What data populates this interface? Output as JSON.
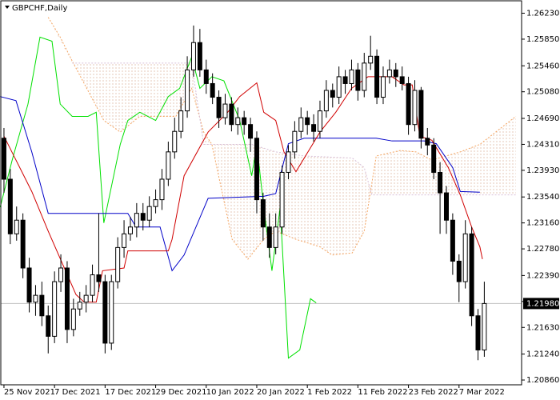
{
  "chart_data": {
    "type": "candlestick",
    "title": "GBPCHF,Daily",
    "xlim": [
      -0.5,
      81.9
    ],
    "ylim": [
      1.2079,
      1.264
    ],
    "xticks": [
      {
        "value": 0,
        "label": "25 Nov 2021"
      },
      {
        "value": 8,
        "label": "7 Dec 2021"
      },
      {
        "value": 16,
        "label": "17 Dec 2021"
      },
      {
        "value": 24,
        "label": "29 Dec 2021"
      },
      {
        "value": 32,
        "label": "10 Jan 2022"
      },
      {
        "value": 40,
        "label": "20 Jan 2022"
      },
      {
        "value": 48,
        "label": "1 Feb 2022"
      },
      {
        "value": 56,
        "label": "11 Feb 2022"
      },
      {
        "value": 64,
        "label": "23 Feb 2022"
      },
      {
        "value": 72,
        "label": "7 Mar 2022"
      }
    ],
    "yticks": [
      {
        "value": 1.2623,
        "label": "1.26230"
      },
      {
        "value": 1.2585,
        "label": "1.25850"
      },
      {
        "value": 1.2546,
        "label": "1.25460"
      },
      {
        "value": 1.2508,
        "label": "1.25080"
      },
      {
        "value": 1.2469,
        "label": "1.24690"
      },
      {
        "value": 1.2431,
        "label": "1.24310"
      },
      {
        "value": 1.2393,
        "label": "1.23930"
      },
      {
        "value": 1.2354,
        "label": "1.23540"
      },
      {
        "value": 1.2316,
        "label": "1.23160"
      },
      {
        "value": 1.2278,
        "label": "1.22780"
      },
      {
        "value": 1.2239,
        "label": "1.22390"
      },
      {
        "value": 1.2201,
        "label": "1.22010"
      },
      {
        "value": 1.2163,
        "label": "1.21630"
      },
      {
        "value": 1.2124,
        "label": "1.21240"
      },
      {
        "value": 1.2086,
        "label": "1.20860"
      }
    ],
    "current_price": {
      "value": 1.2198,
      "label": "1.21980"
    },
    "candles": {
      "x": [
        0,
        1,
        2,
        3,
        4,
        5,
        6,
        7,
        8,
        9,
        10,
        11,
        12,
        13,
        14,
        15,
        16,
        17,
        18,
        19,
        20,
        21,
        22,
        23,
        24,
        25,
        26,
        27,
        28,
        29,
        30,
        31,
        32,
        33,
        34,
        35,
        36,
        37,
        38,
        39,
        40,
        41,
        42,
        43,
        44,
        45,
        46,
        47,
        48,
        49,
        50,
        51,
        52,
        53,
        54,
        55,
        56,
        57,
        58,
        59,
        60,
        61,
        62,
        63,
        64,
        65,
        66,
        67,
        68,
        69,
        70,
        71,
        72,
        73,
        74,
        75,
        76
      ],
      "open": [
        1.244,
        1.238,
        1.23,
        1.232,
        1.225,
        1.22,
        1.221,
        1.218,
        1.215,
        1.223,
        1.225,
        1.216,
        1.219,
        1.22,
        1.221,
        1.224,
        1.223,
        1.214,
        1.223,
        1.228,
        1.23,
        1.231,
        1.233,
        1.232,
        1.234,
        1.235,
        1.238,
        1.242,
        1.245,
        1.248,
        1.254,
        1.258,
        1.254,
        1.252,
        1.25,
        1.247,
        1.249,
        1.246,
        1.247,
        1.246,
        1.244,
        1.235,
        1.231,
        1.228,
        1.231,
        1.239,
        1.242,
        1.245,
        1.247,
        1.246,
        1.245,
        1.248,
        1.251,
        1.25,
        1.253,
        1.252,
        1.254,
        1.251,
        1.255,
        1.256,
        1.25,
        1.253,
        1.254,
        1.253,
        1.252,
        1.246,
        1.251,
        1.244,
        1.243,
        1.239,
        1.236,
        1.232,
        1.226,
        1.223,
        1.23,
        1.218,
        1.213
      ],
      "high": [
        1.2455,
        1.2395,
        1.234,
        1.233,
        1.2265,
        1.2225,
        1.223,
        1.2195,
        1.2245,
        1.227,
        1.226,
        1.2205,
        1.2215,
        1.2225,
        1.2255,
        1.233,
        1.224,
        1.224,
        1.2295,
        1.232,
        1.2325,
        1.2345,
        1.2345,
        1.2355,
        1.2365,
        1.2395,
        1.2435,
        1.247,
        1.25,
        1.256,
        1.2605,
        1.26,
        1.2555,
        1.2535,
        1.251,
        1.2505,
        1.25,
        1.2485,
        1.248,
        1.247,
        1.245,
        1.236,
        1.233,
        1.233,
        1.24,
        1.243,
        1.2465,
        1.2485,
        1.248,
        1.2475,
        1.2495,
        1.2525,
        1.252,
        1.2545,
        1.254,
        1.2555,
        1.255,
        1.2565,
        1.259,
        1.257,
        1.2545,
        1.2555,
        1.255,
        1.2545,
        1.253,
        1.2525,
        1.2515,
        1.2455,
        1.244,
        1.2405,
        1.237,
        1.233,
        1.227,
        1.232,
        1.231,
        1.219,
        1.223
      ],
      "low": [
        1.236,
        1.2285,
        1.229,
        1.2235,
        1.2185,
        1.218,
        1.2165,
        1.2125,
        1.214,
        1.2215,
        1.214,
        1.215,
        1.218,
        1.2185,
        1.22,
        1.2215,
        1.2125,
        1.213,
        1.222,
        1.2265,
        1.229,
        1.2295,
        1.2305,
        1.231,
        1.233,
        1.2335,
        1.237,
        1.241,
        1.244,
        1.247,
        1.253,
        1.253,
        1.2505,
        1.249,
        1.2455,
        1.246,
        1.245,
        1.2445,
        1.2445,
        1.242,
        1.233,
        1.229,
        1.2265,
        1.227,
        1.23,
        1.238,
        1.241,
        1.244,
        1.2445,
        1.2435,
        1.244,
        1.247,
        1.2485,
        1.249,
        1.2505,
        1.251,
        1.2495,
        1.25,
        1.254,
        1.249,
        1.249,
        1.252,
        1.2515,
        1.251,
        1.2445,
        1.245,
        1.2425,
        1.2415,
        1.238,
        1.23,
        1.23,
        1.224,
        1.22,
        1.222,
        1.2165,
        1.2115,
        1.212
      ],
      "close": [
        1.238,
        1.23,
        1.232,
        1.225,
        1.22,
        1.221,
        1.218,
        1.215,
        1.223,
        1.225,
        1.216,
        1.219,
        1.22,
        1.221,
        1.224,
        1.223,
        1.214,
        1.223,
        1.228,
        1.23,
        1.231,
        1.233,
        1.232,
        1.234,
        1.235,
        1.238,
        1.242,
        1.245,
        1.248,
        1.254,
        1.258,
        1.254,
        1.252,
        1.25,
        1.247,
        1.249,
        1.246,
        1.247,
        1.246,
        1.244,
        1.235,
        1.231,
        1.228,
        1.231,
        1.239,
        1.242,
        1.245,
        1.247,
        1.246,
        1.245,
        1.248,
        1.251,
        1.25,
        1.253,
        1.252,
        1.254,
        1.251,
        1.255,
        1.256,
        1.25,
        1.253,
        1.254,
        1.253,
        1.252,
        1.246,
        1.251,
        1.244,
        1.243,
        1.239,
        1.236,
        1.232,
        1.226,
        1.223,
        1.23,
        1.218,
        1.213,
        1.2198
      ]
    },
    "lines": [
      {
        "color": "#f4a460",
        "dash": true,
        "x": [
          7,
          8.9,
          10.8,
          15.8,
          18.4,
          21.5,
          27.2,
          29.7,
          31.6,
          32.9,
          36.1,
          38.6,
          41.1,
          43,
          46.2,
          50,
          51.9,
          55.1,
          57,
          58.2,
          58.9,
          62.7,
          65.2,
          67.7,
          72.2,
          75.3,
          77.8,
          81
        ],
        "values": [
          1.2617,
          1.2588,
          1.2553,
          1.2466,
          1.2449,
          1.2472,
          1.2472,
          1.2513,
          1.2449,
          1.2431,
          1.2292,
          1.2263,
          1.2292,
          1.2304,
          1.2292,
          1.2281,
          1.2269,
          1.2272,
          1.2304,
          1.2374,
          1.2414,
          1.2422,
          1.242,
          1.2408,
          1.242,
          1.2431,
          1.2449,
          1.2472
        ]
      },
      {
        "color": "#d8bfd8",
        "dash": true,
        "x": [
          10.8,
          29.7,
          31.6,
          39.2,
          43,
          47.5,
          55.1,
          57,
          58.2,
          81
        ],
        "values": [
          1.255,
          1.255,
          1.2431,
          1.2431,
          1.242,
          1.2414,
          1.2411,
          1.2397,
          1.2357,
          1.2357
        ]
      },
      {
        "color": "#00e000",
        "dash": false,
        "x": [
          -0.6,
          1.3,
          3.8,
          5.7,
          7.6,
          8.9,
          10.8,
          13.3,
          14.6,
          15.8,
          18.4,
          19.6,
          21.5,
          24,
          26,
          27.8,
          29.7,
          31,
          32.9,
          34.8,
          37.3,
          39.2,
          40,
          41.1,
          42.4,
          43.7,
          45,
          46.8,
          48.5,
          49.4
        ],
        "values": [
          1.2339,
          1.2408,
          1.249,
          1.2588,
          1.2582,
          1.249,
          1.2472,
          1.2472,
          1.2478,
          1.2316,
          1.2431,
          1.2466,
          1.2478,
          1.2466,
          1.2501,
          1.2513,
          1.2559,
          1.2513,
          1.253,
          1.2524,
          1.2466,
          1.2385,
          1.2431,
          1.2339,
          1.2246,
          1.2339,
          1.2118,
          1.213,
          1.2205,
          1.2199
        ]
      },
      {
        "color": "#0000c8",
        "dash": false,
        "x": [
          -0.6,
          1.9,
          4.4,
          7,
          19.6,
          20.9,
          24.7,
          26.6,
          28.5,
          32.3,
          41.1,
          43,
          45,
          47.5,
          58.9,
          61.4,
          66.5,
          68.4,
          71,
          72.2,
          75.3
        ],
        "values": [
          1.2501,
          1.2495,
          1.242,
          1.233,
          1.233,
          1.231,
          1.231,
          1.2246,
          1.2269,
          1.2352,
          1.2355,
          1.2359,
          1.2432,
          1.244,
          1.244,
          1.2436,
          1.2436,
          1.2432,
          1.2397,
          1.2362,
          1.2361
        ]
      },
      {
        "color": "#d00000",
        "dash": false,
        "x": [
          0,
          4.4,
          7,
          11.4,
          12.7,
          14.6,
          15.6,
          19,
          19.6,
          26,
          26.6,
          28.5,
          32.3,
          35.4,
          37.3,
          40,
          41.1,
          43,
          44.3,
          46.2,
          48.1,
          50,
          52.5,
          55,
          57.6,
          61.4,
          63.3,
          64.6,
          65.8,
          67.7,
          70.3,
          72.2,
          74,
          75.3,
          75.7
        ],
        "values": [
          1.2443,
          1.2362,
          1.2304,
          1.2211,
          1.22,
          1.22,
          1.2246,
          1.225,
          1.2275,
          1.2275,
          1.2292,
          1.2385,
          1.2449,
          1.2478,
          1.2501,
          1.2521,
          1.2478,
          1.2466,
          1.242,
          1.2391,
          1.242,
          1.2449,
          1.2478,
          1.2513,
          1.253,
          1.253,
          1.2518,
          1.2518,
          1.2443,
          1.2437,
          1.2397,
          1.2357,
          1.231,
          1.2281,
          1.2263
        ]
      }
    ]
  }
}
